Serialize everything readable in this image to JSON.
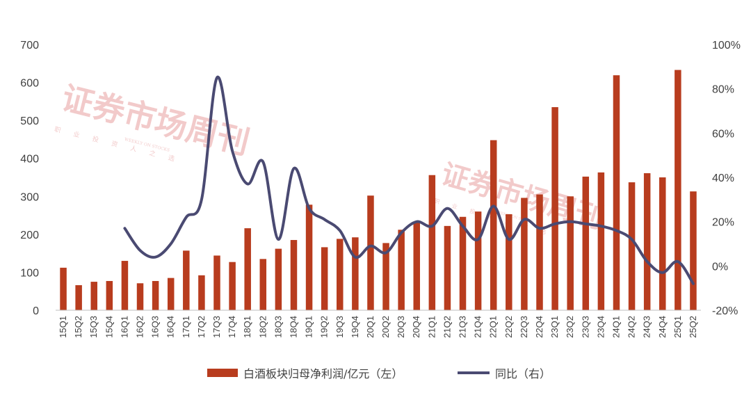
{
  "chart_data": {
    "type": "bar",
    "categories": [
      "15Q1",
      "15Q2",
      "15Q3",
      "15Q4",
      "16Q1",
      "16Q2",
      "16Q3",
      "16Q4",
      "17Q1",
      "17Q2",
      "17Q3",
      "17Q4",
      "18Q1",
      "18Q2",
      "18Q3",
      "18Q4",
      "19Q1",
      "19Q2",
      "19Q3",
      "19Q4",
      "20Q1",
      "20Q2",
      "20Q3",
      "20Q4",
      "21Q1",
      "21Q2",
      "21Q3",
      "21Q4",
      "22Q1",
      "22Q2",
      "22Q3",
      "22Q4",
      "23Q1",
      "23Q2",
      "23Q3",
      "23Q4",
      "24Q1",
      "24Q2",
      "24Q3",
      "24Q4",
      "25Q1",
      "25Q2"
    ],
    "series": [
      {
        "name": "白酒板块归母净利润/亿元（左）",
        "type": "bar",
        "axis": "left",
        "color": "#b83c1e",
        "values": [
          112,
          66,
          75,
          77,
          130,
          71,
          77,
          85,
          157,
          92,
          144,
          127,
          216,
          135,
          162,
          185,
          278,
          166,
          188,
          192,
          302,
          177,
          212,
          232,
          356,
          222,
          246,
          260,
          448,
          253,
          296,
          305,
          535,
          300,
          352,
          363,
          619,
          337,
          361,
          350,
          633,
          313
        ]
      },
      {
        "name": "同比（右）",
        "type": "line",
        "axis": "right",
        "color": "#4a4a72",
        "values": [
          null,
          null,
          null,
          null,
          17,
          7,
          4,
          10,
          22,
          30,
          85,
          52,
          37,
          47,
          12,
          44,
          26,
          21,
          16,
          4,
          9,
          6,
          15,
          20,
          18,
          26,
          18,
          12,
          27,
          12,
          21,
          17,
          19,
          20,
          19,
          18,
          16,
          12,
          2,
          -3,
          2,
          -8
        ]
      }
    ],
    "y_left": {
      "min": 0,
      "max": 700,
      "ticks": [
        0,
        100,
        200,
        300,
        400,
        500,
        600,
        700
      ]
    },
    "y_right": {
      "min": -20,
      "max": 100,
      "ticks": [
        "-20%",
        "0%",
        "20%",
        "40%",
        "60%",
        "80%",
        "100%"
      ]
    },
    "legend_position": "bottom",
    "grid": false
  },
  "watermark": {
    "text": "证券市场周刊",
    "sub_cn": "职 业 投 资 人 之 选",
    "sub_en": "WEEKLY ON STOCKS"
  }
}
